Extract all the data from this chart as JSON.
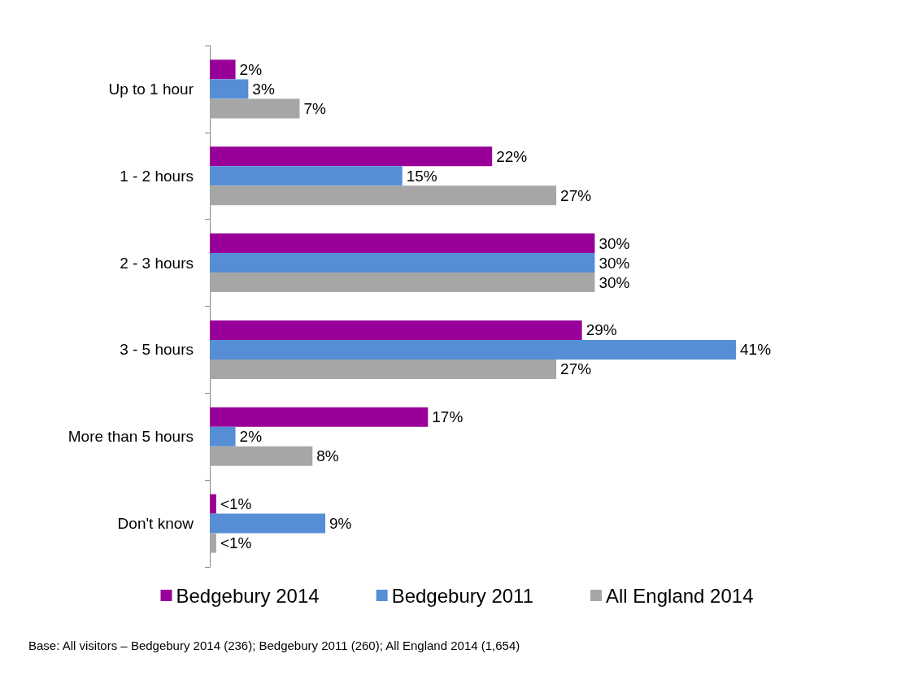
{
  "chart_data": {
    "type": "bar",
    "orientation": "horizontal",
    "categories": [
      "Up to 1 hour",
      "1 - 2 hours",
      "2 - 3 hours",
      "3 - 5 hours",
      "More than 5 hours",
      "Don't know"
    ],
    "series": [
      {
        "name": "Bedgebury 2014",
        "color": "#990099",
        "values": [
          2,
          22,
          30,
          29,
          17,
          0.5
        ],
        "value_labels": [
          "2%",
          "22%",
          "30%",
          "29%",
          "17%",
          "<1%"
        ]
      },
      {
        "name": "Bedgebury 2011",
        "color": "#558ed5",
        "values": [
          3,
          15,
          30,
          41,
          2,
          9
        ],
        "value_labels": [
          "3%",
          "15%",
          "30%",
          "41%",
          "2%",
          "9%"
        ]
      },
      {
        "name": "All England 2014",
        "color": "#a6a6a6",
        "values": [
          7,
          27,
          30,
          27,
          8,
          0.5
        ],
        "value_labels": [
          "7%",
          "27%",
          "30%",
          "27%",
          "8%",
          "<1%"
        ]
      }
    ],
    "legend": "bottom",
    "annotations": [
      "Base: All visitors – Bedgebury 2014 (236); Bedgebury 2011 (260); All England 2014 (1,654)"
    ]
  }
}
